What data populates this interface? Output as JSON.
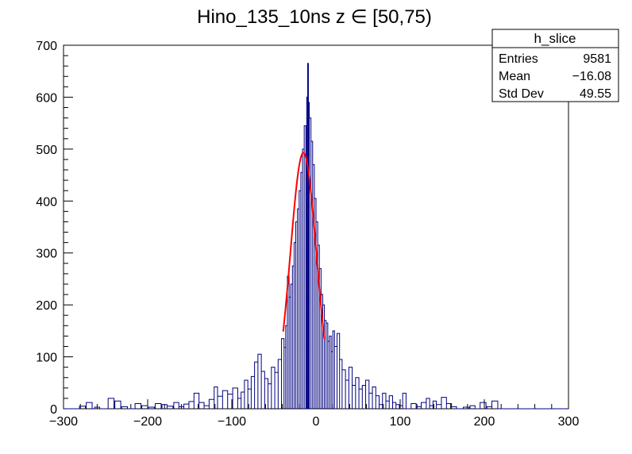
{
  "chart_data": {
    "type": "histogram",
    "title": "Hino_135_10ns z  ∈ [50,75)",
    "xlabel": "",
    "ylabel": "",
    "xlim": [
      -300,
      300
    ],
    "ylim": [
      0,
      700
    ],
    "grid": false,
    "x_ticks": [
      "−300",
      "−200",
      "−100",
      "0",
      "100",
      "200",
      "300"
    ],
    "y_ticks": [
      "0",
      "100",
      "200",
      "300",
      "400",
      "500",
      "600",
      "700"
    ],
    "histogram": {
      "color": "#000080",
      "bin_width": 2,
      "points": [
        [
          -290,
          0
        ],
        [
          -280,
          5
        ],
        [
          -272,
          12
        ],
        [
          -262,
          3
        ],
        [
          -256,
          0
        ],
        [
          -246,
          20
        ],
        [
          -238,
          15
        ],
        [
          -230,
          4
        ],
        [
          -222,
          0
        ],
        [
          -214,
          10
        ],
        [
          -206,
          6
        ],
        [
          -198,
          3
        ],
        [
          -190,
          10
        ],
        [
          -182,
          8
        ],
        [
          -176,
          5
        ],
        [
          -168,
          12
        ],
        [
          -162,
          4
        ],
        [
          -156,
          9
        ],
        [
          -150,
          14
        ],
        [
          -144,
          30
        ],
        [
          -138,
          12
        ],
        [
          -132,
          6
        ],
        [
          -126,
          18
        ],
        [
          -120,
          42
        ],
        [
          -116,
          24
        ],
        [
          -110,
          35
        ],
        [
          -104,
          28
        ],
        [
          -98,
          40
        ],
        [
          -92,
          20
        ],
        [
          -88,
          32
        ],
        [
          -84,
          55
        ],
        [
          -80,
          38
        ],
        [
          -76,
          62
        ],
        [
          -72,
          90
        ],
        [
          -68,
          105
        ],
        [
          -64,
          72
        ],
        [
          -60,
          58
        ],
        [
          -56,
          48
        ],
        [
          -52,
          80
        ],
        [
          -48,
          70
        ],
        [
          -44,
          95
        ],
        [
          -40,
          135
        ],
        [
          -37,
          118
        ],
        [
          -35,
          160
        ],
        [
          -33,
          255
        ],
        [
          -31,
          215
        ],
        [
          -29,
          240
        ],
        [
          -27,
          275
        ],
        [
          -25,
          320
        ],
        [
          -23,
          360
        ],
        [
          -21,
          385
        ],
        [
          -19,
          420
        ],
        [
          -17,
          455
        ],
        [
          -15,
          500
        ],
        [
          -13,
          545
        ],
        [
          -11,
          520
        ],
        [
          -10,
          600
        ],
        [
          -9,
          665
        ],
        [
          -8,
          590
        ],
        [
          -7,
          560
        ],
        [
          -5,
          515
        ],
        [
          -3,
          470
        ],
        [
          -1,
          405
        ],
        [
          1,
          360
        ],
        [
          3,
          315
        ],
        [
          5,
          270
        ],
        [
          7,
          220
        ],
        [
          9,
          200
        ],
        [
          11,
          170
        ],
        [
          13,
          165
        ],
        [
          15,
          130
        ],
        [
          17,
          140
        ],
        [
          19,
          110
        ],
        [
          21,
          150
        ],
        [
          23,
          120
        ],
        [
          26,
          145
        ],
        [
          29,
          95
        ],
        [
          32,
          75
        ],
        [
          36,
          55
        ],
        [
          40,
          80
        ],
        [
          44,
          45
        ],
        [
          48,
          60
        ],
        [
          52,
          38
        ],
        [
          56,
          45
        ],
        [
          60,
          55
        ],
        [
          64,
          30
        ],
        [
          68,
          42
        ],
        [
          72,
          25
        ],
        [
          76,
          8
        ],
        [
          80,
          30
        ],
        [
          84,
          15
        ],
        [
          88,
          25
        ],
        [
          92,
          12
        ],
        [
          96,
          8
        ],
        [
          100,
          6
        ],
        [
          104,
          30
        ],
        [
          108,
          0
        ],
        [
          114,
          10
        ],
        [
          120,
          4
        ],
        [
          126,
          12
        ],
        [
          132,
          20
        ],
        [
          136,
          6
        ],
        [
          140,
          15
        ],
        [
          144,
          8
        ],
        [
          150,
          22
        ],
        [
          156,
          10
        ],
        [
          162,
          4
        ],
        [
          168,
          0
        ],
        [
          176,
          3
        ],
        [
          184,
          6
        ],
        [
          190,
          0
        ],
        [
          196,
          12
        ],
        [
          204,
          4
        ],
        [
          210,
          15
        ],
        [
          218,
          0
        ]
      ]
    },
    "fit": {
      "color": "#ff0000",
      "function": "gaus",
      "constant": 493,
      "mean": -15,
      "sigma": 15.5,
      "x_range": [
        -39,
        10
      ]
    },
    "stats_box": {
      "title": "h_slice",
      "rows": [
        {
          "label": "Entries",
          "value": "9581"
        },
        {
          "label": "Mean",
          "value": "−16.08"
        },
        {
          "label": "Std Dev",
          "value": "49.55"
        }
      ]
    }
  }
}
